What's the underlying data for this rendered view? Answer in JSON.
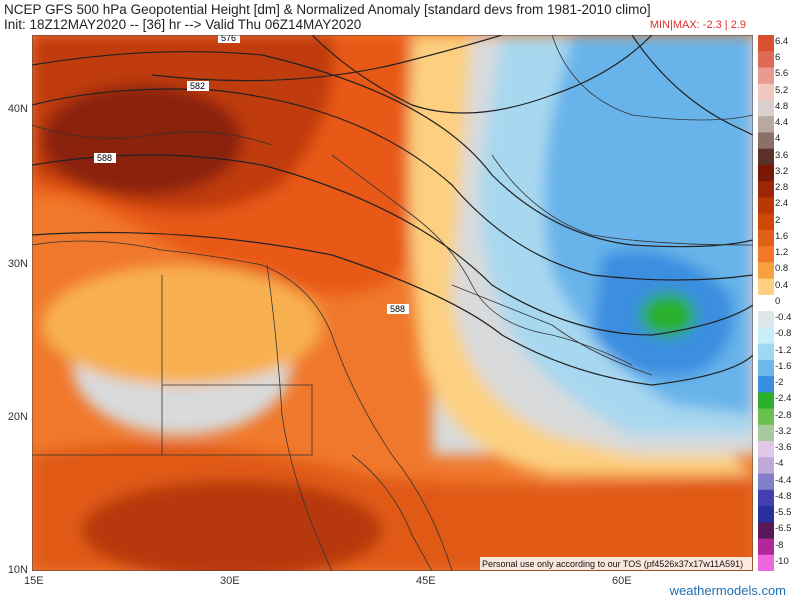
{
  "header": {
    "title_line1": "NCEP GFS 500 hPa Geopotential Height [dm] & Normalized Anomaly [standard devs from 1981-2010 climo]",
    "title_line2": "Init: 18Z12MAY2020 -- [36] hr --> Valid Thu 06Z14MAY2020",
    "minmax": "MIN|MAX: -2.3 | 2.9",
    "minmax_color": "#e03030"
  },
  "map": {
    "lat_labels": [
      "40N",
      "30N",
      "20N",
      "10N"
    ],
    "lon_labels": [
      "15E",
      "30E",
      "45E",
      "60E"
    ],
    "contour_labels": [
      "576",
      "582",
      "588",
      "588"
    ],
    "watermark_notice": "Personal use only according to our TOS (pf4526x37x17w11A591)"
  },
  "colorbar": {
    "labels": [
      "6.4",
      "6",
      "5.6",
      "5.2",
      "4.8",
      "4.4",
      "4",
      "3.6",
      "3.2",
      "2.8",
      "2.4",
      "2",
      "1.6",
      "1.2",
      "0.8",
      "0.4",
      "0",
      "-0.4",
      "-0.8",
      "-1.2",
      "-1.6",
      "-2",
      "-2.4",
      "-2.8",
      "-3.2",
      "-3.6",
      "-4",
      "-4.4",
      "-4.8",
      "-5.5",
      "-6.5",
      "-8",
      "-10"
    ],
    "colors": [
      "#d95030",
      "#e06a55",
      "#e89a90",
      "#f0c8c0",
      "#d8d0cc",
      "#b8a8a0",
      "#8a7068",
      "#5a3028",
      "#7a1808",
      "#9a2808",
      "#b83808",
      "#d04808",
      "#e06018",
      "#f07828",
      "#f8a040",
      "#fcd080",
      "#ffffff",
      "#dfe6ea",
      "#c8eef8",
      "#9ed8f2",
      "#6cb8ea",
      "#3a8ee0",
      "#2cb02c",
      "#6cc050",
      "#a8c8a0",
      "#e0c8e8",
      "#c0a8d8",
      "#8080c8",
      "#4040b0",
      "#2830a0",
      "#581858",
      "#b02898",
      "#ee66dd"
    ]
  },
  "footer": {
    "site": "weathermodels.com"
  }
}
